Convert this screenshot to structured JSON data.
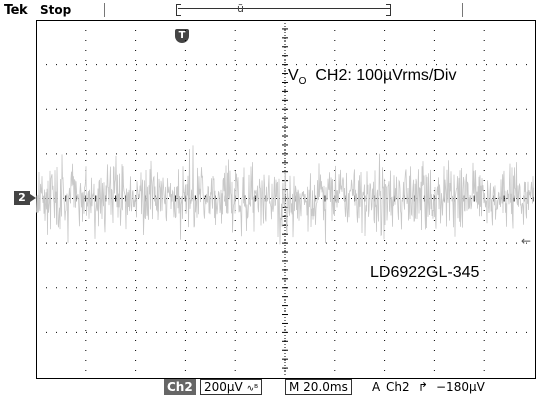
{
  "status": {
    "brand": "Tek",
    "state": "Stop"
  },
  "markers": {
    "trigger_position": "T",
    "channel": "2",
    "trigger_level": "←",
    "record_marker": "ũ"
  },
  "annotations": {
    "vo_main": "V",
    "vo_sub": "O",
    "vo_rest": "CH2: 100µVrms/Div",
    "part": "LD6922GL-345"
  },
  "readout": {
    "channel": "Ch2",
    "scale": "200µV",
    "bw_icon": "∿ᴮ",
    "timebase": "M 20.0ms",
    "acq": "A",
    "trig_source": "Ch2",
    "trig_slope_icon": "↱",
    "trig_level": "−180µV"
  },
  "trace": {
    "color": "#c8c8c8"
  }
}
